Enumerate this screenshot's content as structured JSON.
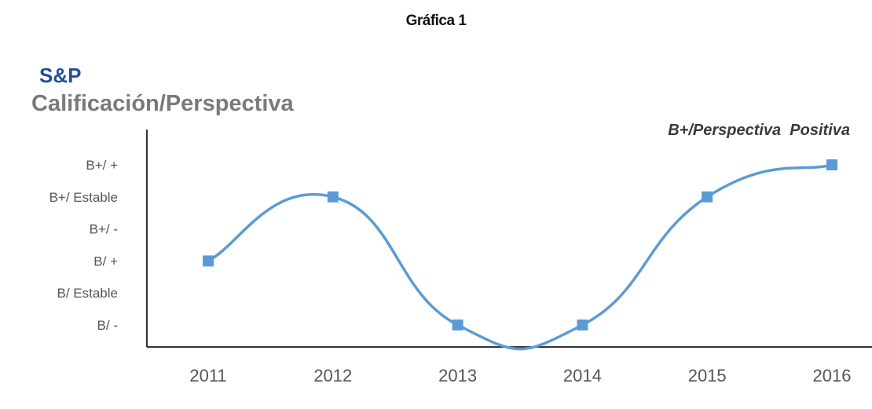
{
  "page_title": "Gráfica 1",
  "chart_data": {
    "type": "line",
    "title": "Calificación/Perspectiva",
    "brand": "S&P",
    "annotation": "B+/Perspectiva  Positiva",
    "xlabel": "",
    "ylabel": "",
    "x": [
      "2011",
      "2012",
      "2013",
      "2014",
      "2015",
      "2016"
    ],
    "y_categories": [
      "B/ -",
      "B/ Estable",
      "B/ +",
      "B+/ -",
      "B+/ Estable",
      "B+/ +"
    ],
    "series": [
      {
        "values": [
          "B/ +",
          "B+/ Estable",
          "B/ -",
          "B/ -",
          "B+/ Estable",
          "B+/ +"
        ],
        "color": "#5b9bd5"
      }
    ],
    "grid": false,
    "legend": "none",
    "smooth": true,
    "marker": "square"
  }
}
